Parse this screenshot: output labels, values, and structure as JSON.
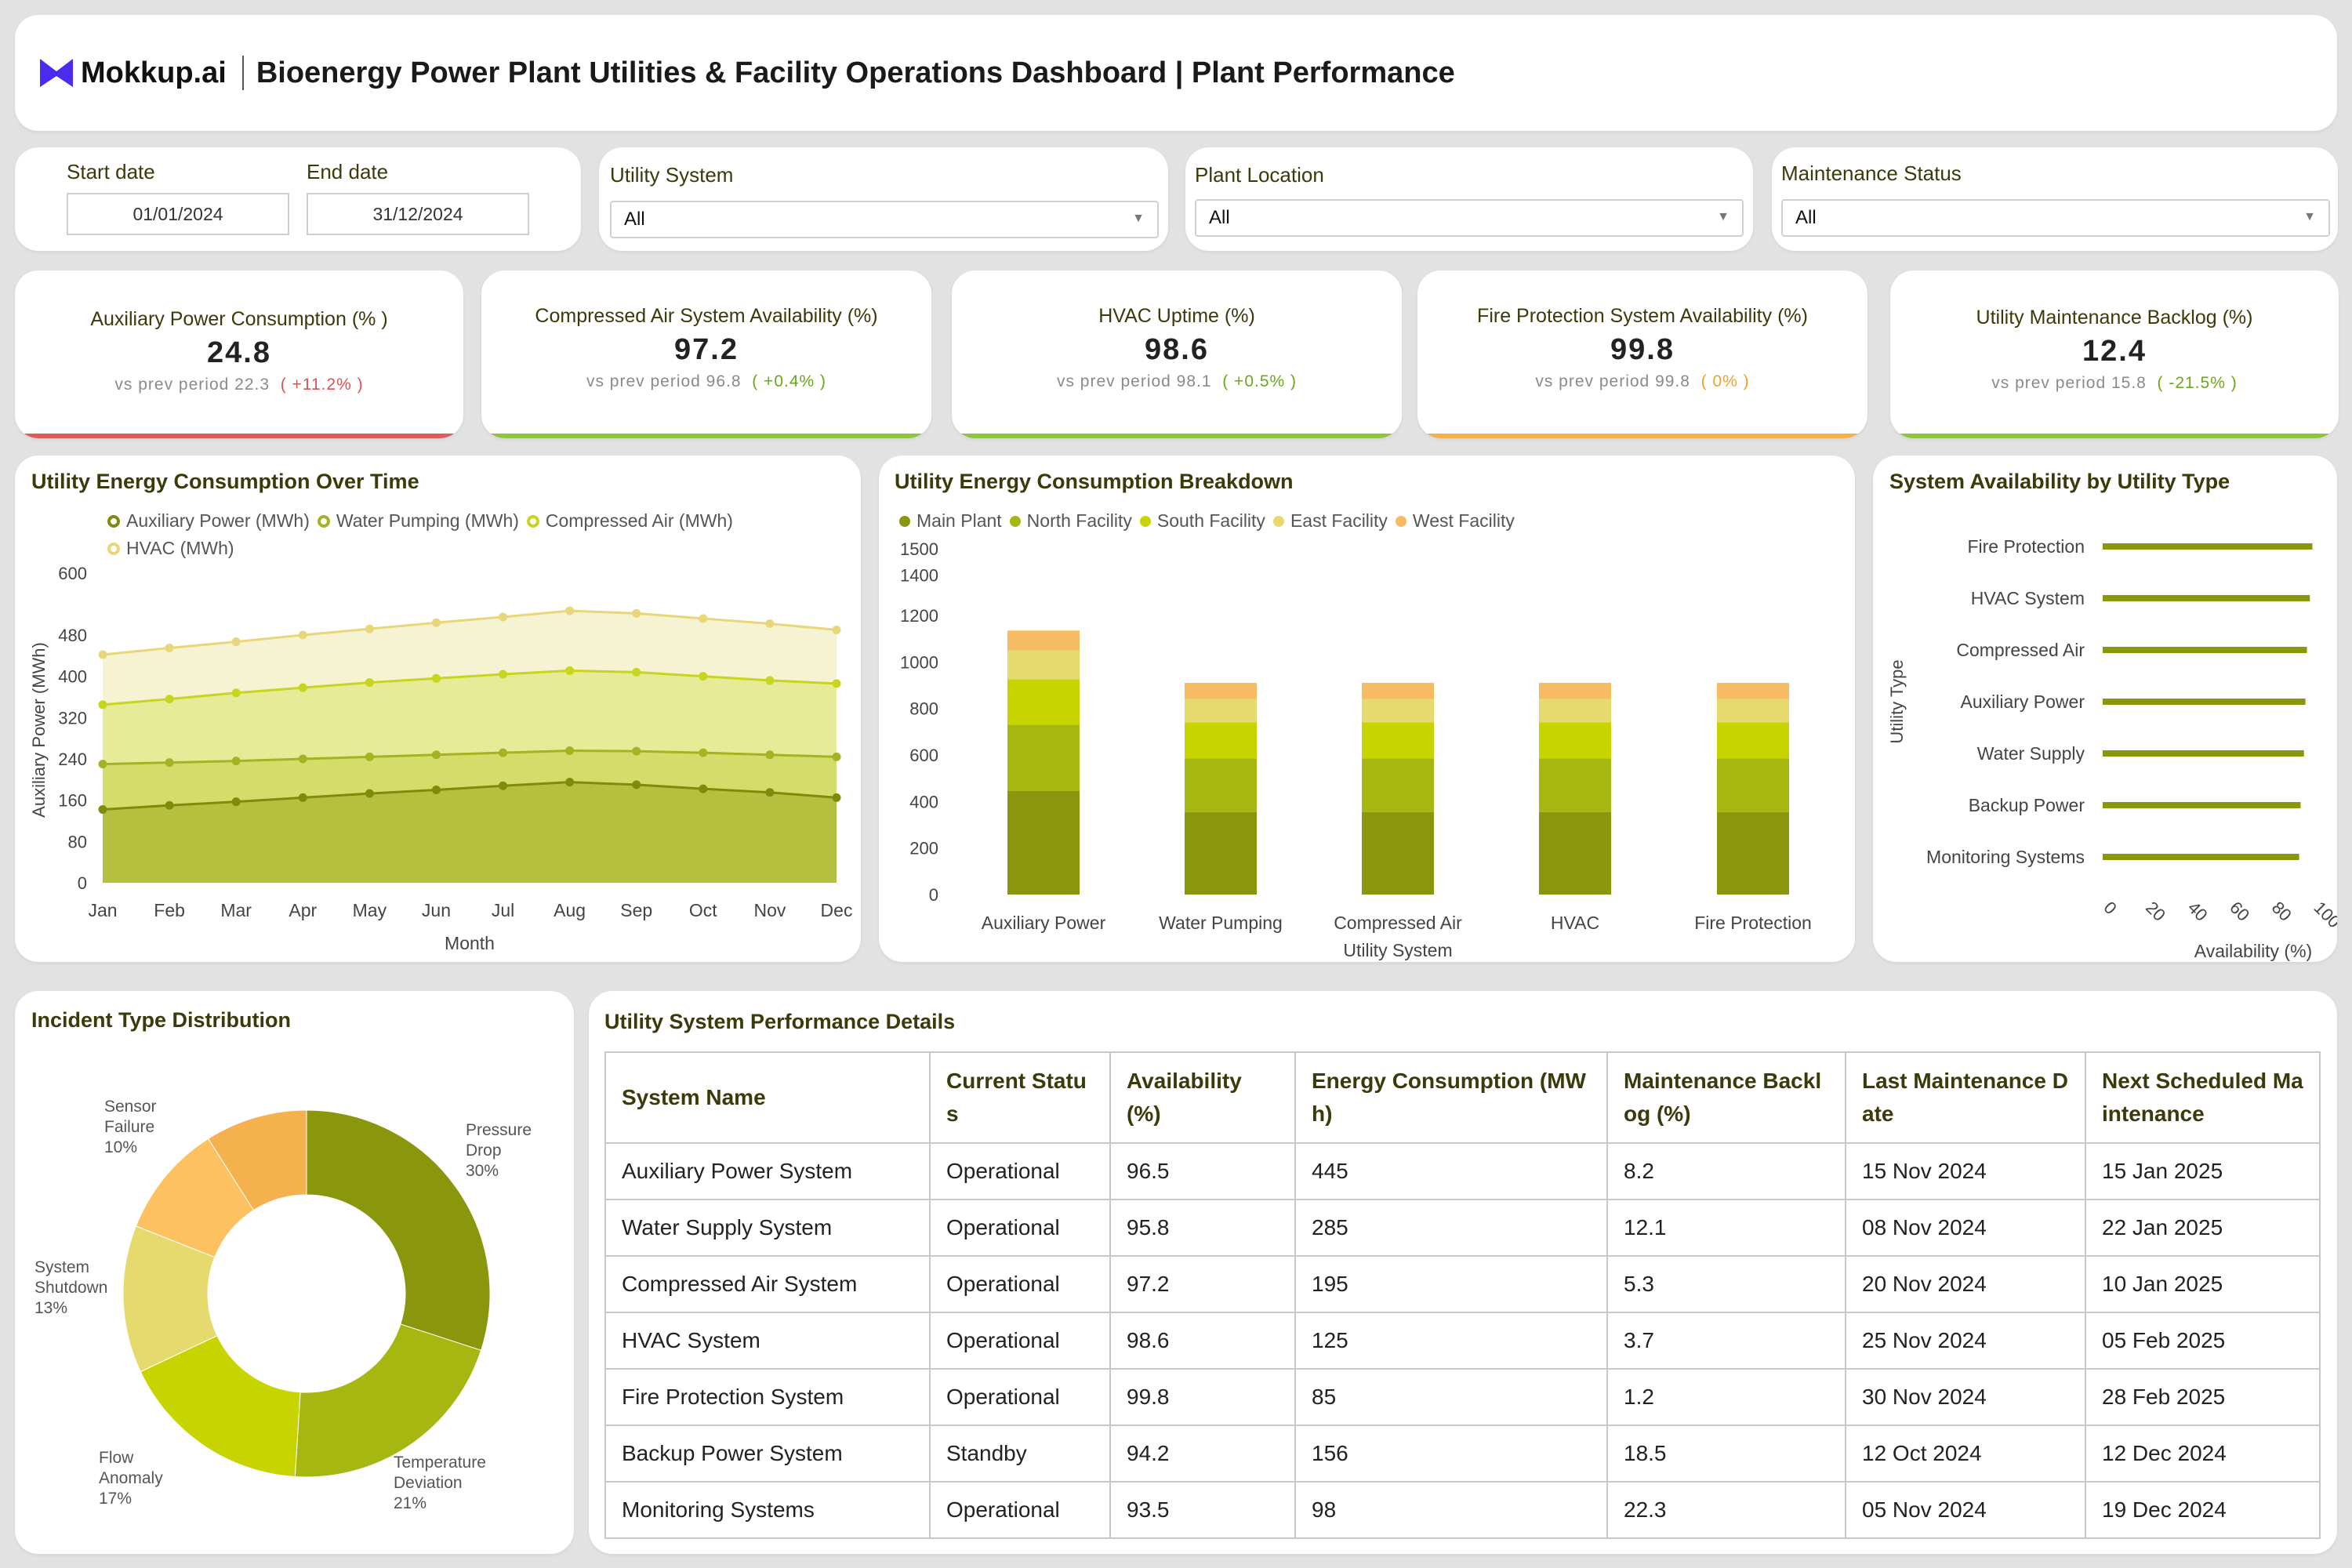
{
  "header": {
    "logo_text": "Mokkup.ai",
    "title": "Bioenergy Power Plant Utilities & Facility Operations Dashboard | Plant Performance"
  },
  "filters": {
    "start_date_label": "Start date",
    "start_date": "01/01/2024",
    "end_date_label": "End date",
    "end_date": "31/12/2024",
    "utility_system_label": "Utility System",
    "utility_system_value": "All",
    "plant_location_label": "Plant Location",
    "plant_location_value": "All",
    "maintenance_status_label": "Maintenance Status",
    "maintenance_status_value": "All"
  },
  "kpis": [
    {
      "label": "Auxiliary Power Consumption (% )",
      "value": "24.8",
      "prev": "vs prev period 22.3",
      "delta": "( +11.2% )",
      "bar_color": "#e05a5a"
    },
    {
      "label": "Compressed Air System Availability (%)",
      "value": "97.2",
      "prev": "vs prev period 96.8",
      "delta": "( +0.4% )",
      "bar_color": "#8cc63f"
    },
    {
      "label": "HVAC Uptime (%)",
      "value": "98.6",
      "prev": "vs prev period 98.1",
      "delta": "( +0.5% )",
      "bar_color": "#8cc63f"
    },
    {
      "label": "Fire Protection System Availability (%)",
      "value": "99.8",
      "prev": "vs prev period 99.8",
      "delta": "( 0% )",
      "bar_color": "#f5b04a"
    },
    {
      "label": "Utility Maintenance Backlog (%)",
      "value": "12.4",
      "prev": "vs prev period 15.8",
      "delta": "( -21.5% )",
      "bar_color": "#8cc63f"
    }
  ],
  "charts": {
    "energy_over_time_title": "Utility Energy Consumption Over Time",
    "breakdown_title": "Utility Energy Consumption Breakdown",
    "availability_title": "System Availability by Utility Type",
    "incident_title": "Incident Type Distribution"
  },
  "chart_data": [
    {
      "type": "area",
      "title": "Utility Energy Consumption Over Time",
      "xlabel": "Month",
      "ylabel": "Auxiliary Power (MWh)",
      "ylim": [
        0,
        600
      ],
      "yticks": [
        0,
        80,
        160,
        240,
        320,
        400,
        480,
        600
      ],
      "stacked": true,
      "categories": [
        "Jan",
        "Feb",
        "Mar",
        "Apr",
        "May",
        "Jun",
        "Jul",
        "Aug",
        "Sep",
        "Oct",
        "Nov",
        "Dec"
      ],
      "series": [
        {
          "name": "Auxiliary Power (MWh)",
          "color": "#7f8c0a",
          "fill": "#b5c03e",
          "values": [
            142,
            150,
            157,
            165,
            173,
            180,
            188,
            195,
            190,
            182,
            175,
            165
          ]
        },
        {
          "name": "Water Pumping (MWh)",
          "color": "#a4b322",
          "fill": "#d4dc6a",
          "values": [
            230,
            233,
            236,
            240,
            244,
            248,
            252,
            256,
            255,
            252,
            248,
            244
          ]
        },
        {
          "name": "Compressed Air (MWh)",
          "color": "#c8d41e",
          "fill": "#e6eb98",
          "values": [
            345,
            356,
            368,
            378,
            388,
            396,
            404,
            411,
            408,
            400,
            392,
            386
          ]
        },
        {
          "name": "HVAC (MWh)",
          "color": "#e8d77a",
          "fill": "#f6f3d2",
          "values": [
            442,
            455,
            467,
            480,
            492,
            504,
            515,
            527,
            522,
            512,
            502,
            490
          ]
        }
      ]
    },
    {
      "type": "bar",
      "stacked": true,
      "title": "Utility Energy Consumption Breakdown",
      "xlabel": "Utility System",
      "ylim": [
        0,
        1500
      ],
      "yticks": [
        0,
        200,
        400,
        600,
        800,
        1000,
        1200,
        1400,
        1500
      ],
      "categories": [
        "Auxiliary Power",
        "Water Pumping",
        "Compressed Air",
        "HVAC",
        "Fire Protection"
      ],
      "series": [
        {
          "name": "Main Plant",
          "color": "#8a960c",
          "values": [
            445,
            355,
            355,
            355,
            355
          ]
        },
        {
          "name": "North Facility",
          "color": "#a6b712",
          "values": [
            285,
            230,
            230,
            230,
            230
          ]
        },
        {
          "name": "South Facility",
          "color": "#c8d400",
          "values": [
            195,
            155,
            155,
            155,
            155
          ]
        },
        {
          "name": "East Facility",
          "color": "#e6da6e",
          "values": [
            125,
            100,
            100,
            100,
            100
          ]
        },
        {
          "name": "West Facility",
          "color": "#f6bb63",
          "values": [
            85,
            70,
            70,
            70,
            70
          ]
        }
      ]
    },
    {
      "type": "bar",
      "orientation": "horizontal",
      "title": "System Availability by Utility Type",
      "xlabel": "Availability (%)",
      "ylabel": "Utility Type",
      "xlim": [
        0,
        100
      ],
      "xticks": [
        0,
        20,
        40,
        60,
        80,
        100
      ],
      "categories": [
        "Fire Protection",
        "HVAC System",
        "Compressed Air",
        "Auxiliary Power",
        "Water Supply",
        "Backup Power",
        "Monitoring Systems"
      ],
      "values": [
        99.8,
        98.6,
        97.2,
        96.5,
        95.8,
        94.2,
        93.5
      ],
      "color": "#8a960c"
    },
    {
      "type": "pie",
      "donut": true,
      "title": "Incident Type Distribution",
      "slices": [
        {
          "label": "Pressure Drop",
          "pct": "30%",
          "value": 30,
          "color": "#8a960c"
        },
        {
          "label": "Temperature Deviation",
          "pct": "21%",
          "value": 21,
          "color": "#a6b712"
        },
        {
          "label": "Flow Anomaly",
          "pct": "17%",
          "value": 17,
          "color": "#c8d400"
        },
        {
          "label": "System Shutdown",
          "pct": "13%",
          "value": 13,
          "color": "#e6da6e"
        },
        {
          "label": "Sensor Failure",
          "pct": "10%",
          "value": 10,
          "color": "#fdc160"
        },
        {
          "label": "",
          "pct": "",
          "value": 9,
          "color": "#f6b14f"
        }
      ]
    }
  ],
  "table": {
    "title": "Utility System Performance Details",
    "columns": [
      "System Name",
      "Current Status",
      "Availability (%)",
      "Energy Consumption (MWh)",
      "Maintenance Backlog (%)",
      "Last Maintenance Date",
      "Next Scheduled Maintenance"
    ],
    "rows": [
      [
        "Auxiliary Power System",
        "Operational",
        "96.5",
        "445",
        "8.2",
        "15 Nov 2024",
        "15 Jan 2025"
      ],
      [
        "Water Supply System",
        "Operational",
        "95.8",
        "285",
        "12.1",
        "08 Nov 2024",
        "22 Jan 2025"
      ],
      [
        "Compressed Air System",
        "Operational",
        "97.2",
        "195",
        "5.3",
        "20 Nov 2024",
        "10 Jan 2025"
      ],
      [
        "HVAC System",
        "Operational",
        "98.6",
        "125",
        "3.7",
        "25 Nov 2024",
        "05 Feb 2025"
      ],
      [
        "Fire Protection System",
        "Operational",
        "99.8",
        "85",
        "1.2",
        "30 Nov 2024",
        "28 Feb 2025"
      ],
      [
        "Backup Power System",
        "Standby",
        "94.2",
        "156",
        "18.5",
        "12 Oct 2024",
        "12 Dec 2024"
      ],
      [
        "Monitoring Systems",
        "Operational",
        "93.5",
        "98",
        "22.3",
        "05 Nov 2024",
        "19 Dec 2024"
      ]
    ]
  }
}
